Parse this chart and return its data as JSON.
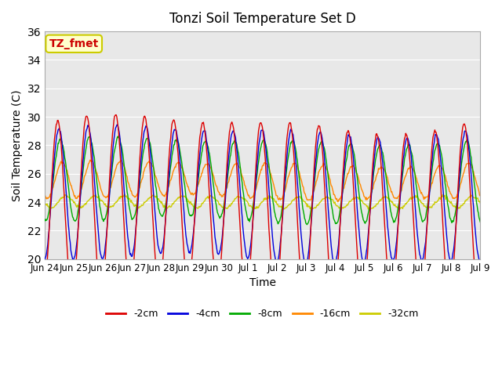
{
  "title": "Tonzi Soil Temperature Set D",
  "xlabel": "Time",
  "ylabel": "Soil Temperature (C)",
  "ylim": [
    20,
    36
  ],
  "annotation_text": "TZ_fmet",
  "annotation_bg": "#ffffcc",
  "annotation_border": "#cccc00",
  "annotation_text_color": "#cc0000",
  "bg_color": "#e8e8e8",
  "series_colors": [
    "#dd0000",
    "#0000dd",
    "#00aa00",
    "#ff8800",
    "#cccc00"
  ],
  "series_labels": [
    "-2cm",
    "-4cm",
    "-8cm",
    "-16cm",
    "-32cm"
  ],
  "tick_labels": [
    "Jun 24",
    "Jun 25",
    "Jun 26",
    "Jun 27",
    "Jun 28",
    "Jun 29",
    "Jun 30",
    "Jul 1",
    "Jul 2",
    "Jul 3",
    "Jul 4",
    "Jul 5",
    "Jul 6",
    "Jul 7",
    "Jul 8",
    "Jul 9"
  ],
  "n_days": 15,
  "points_per_day": 48
}
